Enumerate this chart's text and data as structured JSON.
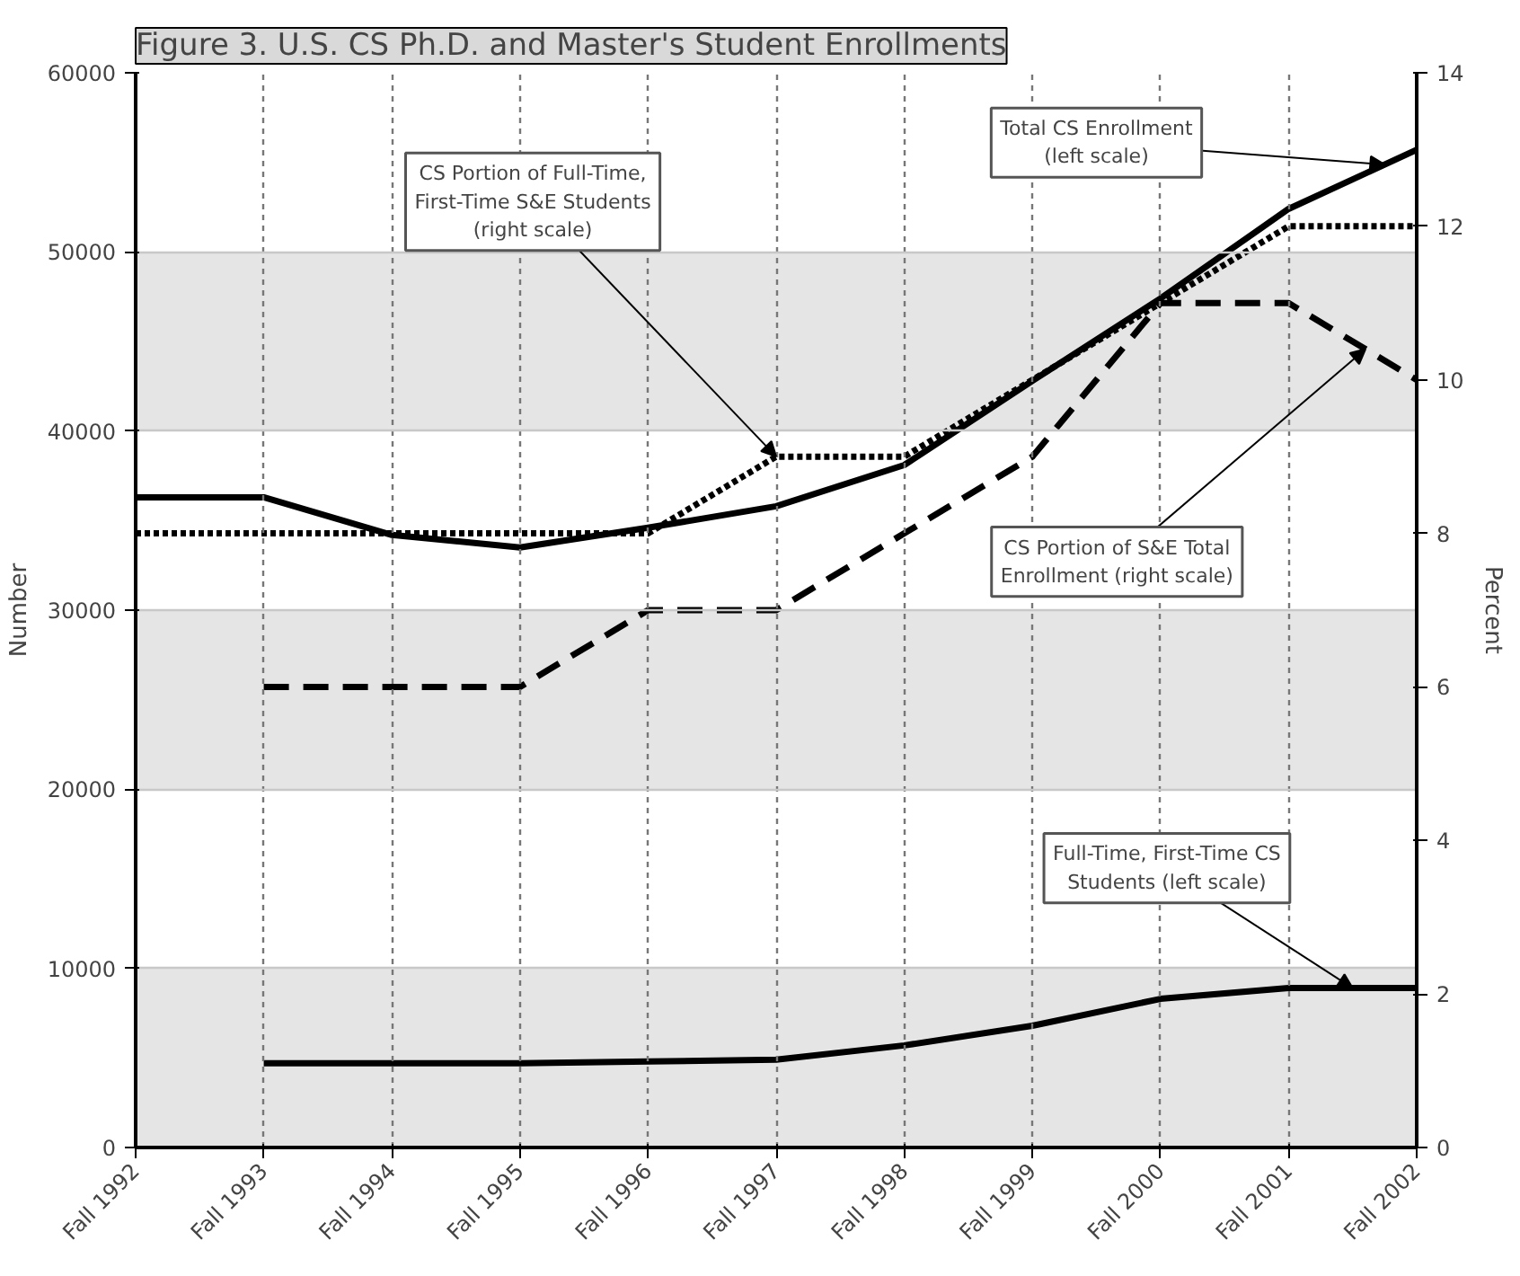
{
  "chart_data": {
    "type": "line",
    "title": "Figure 3. U.S. CS Ph.D. and Master's Student Enrollments",
    "ylabel": "Number",
    "y2label": "Percent",
    "categories": [
      "Fall 1992",
      "Fall 1993",
      "Fall 1994",
      "Fall 1995",
      "Fall 1996",
      "Fall 1997",
      "Fall 1998",
      "Fall 1999",
      "Fall 2000",
      "Fall 2001",
      "Fall 2002"
    ],
    "ylim": [
      0,
      60000
    ],
    "yticks": [
      0,
      10000,
      20000,
      30000,
      40000,
      50000,
      60000
    ],
    "y2lim": [
      0,
      14
    ],
    "y2ticks": [
      0,
      2,
      4,
      6,
      8,
      10,
      12,
      14
    ],
    "grid": true,
    "bands": [
      {
        "axis": "y",
        "from": 0,
        "to": 10000,
        "color": "#e5e5e5"
      },
      {
        "axis": "y",
        "from": 20000,
        "to": 30000,
        "color": "#e5e5e5"
      },
      {
        "axis": "y",
        "from": 40000,
        "to": 50000,
        "color": "#e5e5e5"
      }
    ],
    "series": [
      {
        "name": "Total CS Enrollment (left scale)",
        "color": "#000000",
        "line_style": "solid",
        "values": [
          36300,
          36300,
          34200,
          33500,
          34600,
          35800,
          38100,
          42800,
          47400,
          52400,
          55700
        ]
      },
      {
        "name": "CS Portion of Full-Time, First-Time S&E Students (right scale)",
        "color": "#000000",
        "line_style": "dotted",
        "axis": "y2",
        "values": [
          8,
          8,
          8,
          8,
          8,
          9,
          9,
          10,
          11,
          12,
          12
        ]
      },
      {
        "name": "CS Portion of S&E Total Enrollment (right scale)",
        "color": "#000000",
        "line_style": "dashed",
        "axis": "y2",
        "values": [
          null,
          6,
          6,
          6,
          7,
          7,
          8,
          9,
          11,
          11,
          10
        ]
      },
      {
        "name": "Full-Time, First-Time CS Students (left scale)",
        "color": "#000000",
        "line_style": "solid",
        "values": [
          null,
          4700,
          4700,
          4700,
          4800,
          4900,
          5700,
          6800,
          8300,
          8900,
          8900
        ]
      }
    ]
  }
}
